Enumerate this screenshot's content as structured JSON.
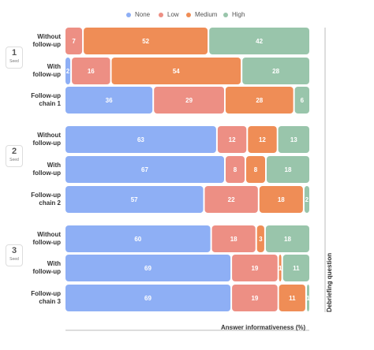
{
  "chart_data": {
    "type": "bar",
    "stacked": true,
    "orientation": "horizontal",
    "xlabel": "Answer informativeness (%)",
    "ylabel": "Debriefing question",
    "legend": {
      "placement": "top-center"
    },
    "series": [
      {
        "name": "None",
        "color": "#8eaff5"
      },
      {
        "name": "Low",
        "color": "#ed8f84"
      },
      {
        "name": "Medium",
        "color": "#ef8d56"
      },
      {
        "name": "High",
        "color": "#99c5ab"
      }
    ],
    "groups": [
      {
        "badge_number": "1",
        "badge_label": "Seed",
        "rows": [
          {
            "label_lines": [
              "Without",
              "follow-up"
            ],
            "values": [
              0,
              7,
              52,
              42
            ]
          },
          {
            "label_lines": [
              "With",
              "follow-up"
            ],
            "values": [
              2,
              16,
              54,
              28
            ]
          },
          {
            "label_lines": [
              "Follow-up",
              "chain 1"
            ],
            "values": [
              36,
              29,
              28,
              6
            ]
          }
        ]
      },
      {
        "badge_number": "2",
        "badge_label": "Seed",
        "rows": [
          {
            "label_lines": [
              "Without",
              "follow-up"
            ],
            "values": [
              63,
              12,
              12,
              13
            ]
          },
          {
            "label_lines": [
              "With",
              "follow-up"
            ],
            "values": [
              67,
              8,
              8,
              18
            ]
          },
          {
            "label_lines": [
              "Follow-up",
              "chain 2"
            ],
            "values": [
              57,
              22,
              18,
              2
            ]
          }
        ]
      },
      {
        "badge_number": "3",
        "badge_label": "Seed",
        "rows": [
          {
            "label_lines": [
              "Without",
              "follow-up"
            ],
            "values": [
              60,
              18,
              3,
              18
            ]
          },
          {
            "label_lines": [
              "With",
              "follow-up"
            ],
            "values": [
              69,
              19,
              1,
              11
            ]
          },
          {
            "label_lines": [
              "Follow-up",
              "chain 3"
            ],
            "values": [
              69,
              19,
              11,
              1
            ]
          }
        ]
      }
    ]
  }
}
